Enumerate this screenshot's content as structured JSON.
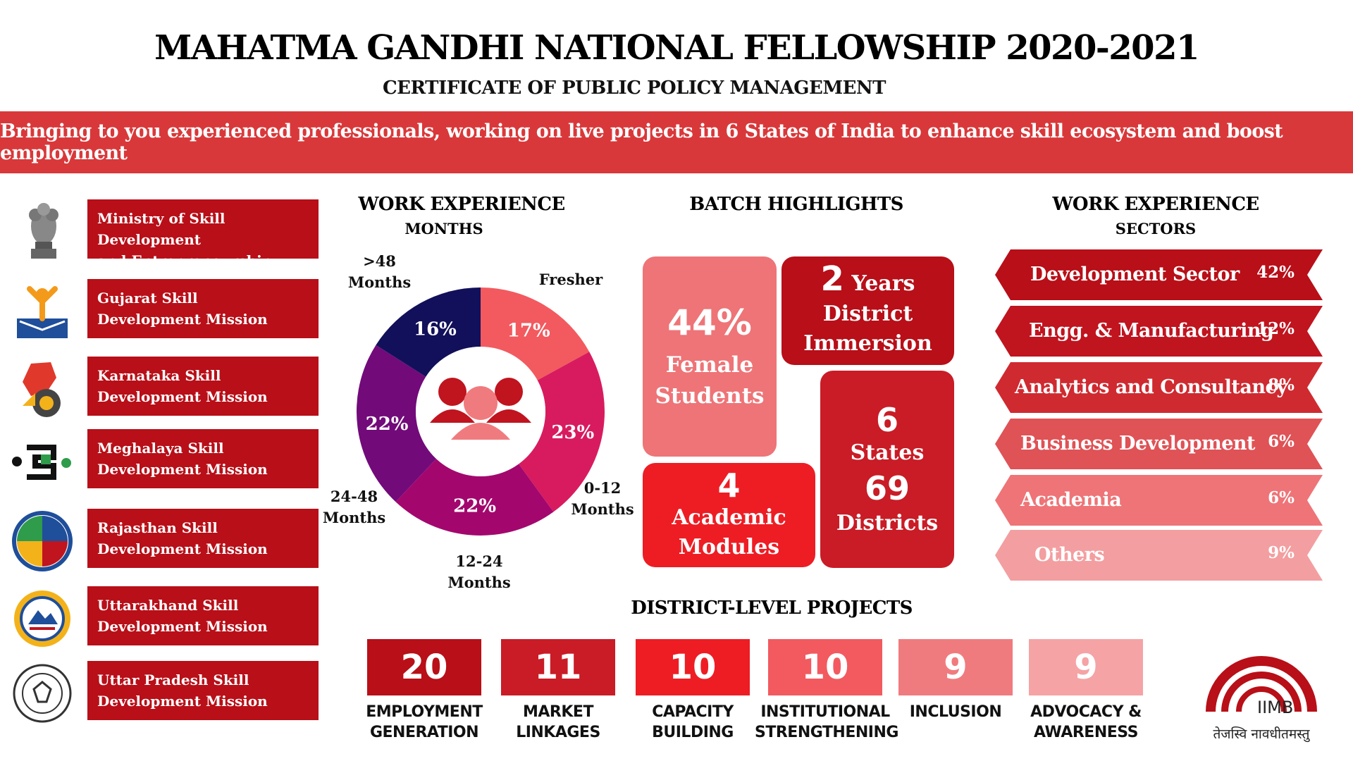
{
  "header": {
    "title": "MAHATMA GANDHI NATIONAL FELLOWSHIP 2020-2021",
    "subtitle": "CERTIFICATE OF PUBLIC POLICY MANAGEMENT",
    "banner": "Bringing to you experienced professionals, working on live projects in 6 States of India to enhance skill ecosystem and boost employment",
    "banner_color": "#d9383a"
  },
  "missions": [
    {
      "name": "Ministry of Skill Development\nand Entrepreneurship, GoI",
      "logo": "national-emblem-icon"
    },
    {
      "name": "Gujarat Skill\nDevelopment Mission",
      "logo": "gujarat-mission-logo"
    },
    {
      "name": "Karnataka Skill\nDevelopment Mission",
      "logo": "karnataka-mission-logo"
    },
    {
      "name": "Meghalaya Skill\nDevelopment Mission",
      "logo": "meghalaya-mission-logo"
    },
    {
      "name": "Rajasthan Skill\nDevelopment Mission",
      "logo": "rajasthan-mission-logo"
    },
    {
      "name": "Uttarakhand Skill\nDevelopment Mission",
      "logo": "uttarakhand-mission-logo"
    },
    {
      "name": "Uttar Pradesh Skill\nDevelopment Mission",
      "logo": "uttar-pradesh-mission-logo"
    }
  ],
  "work_experience_months": {
    "heading": "WORK EXPERIENCE",
    "subheading": "MONTHS",
    "center_icon": "people-group-icon",
    "segments": [
      {
        "label": "Fresher",
        "pct": 17,
        "display": "17%",
        "color": "#f25a5f"
      },
      {
        "label": "0-12\nMonths",
        "pct": 23,
        "display": "23%",
        "color": "#d81b5f"
      },
      {
        "label": "12-24\nMonths",
        "pct": 22,
        "display": "22%",
        "color": "#a3076e"
      },
      {
        "label": "24-48\nMonths",
        "pct": 22,
        "display": "22%",
        "color": "#720a7a"
      },
      {
        "label": ">48\nMonths",
        "pct": 16,
        "display": "16%",
        "color": "#12105a"
      }
    ]
  },
  "batch_highlights": {
    "heading": "BATCH HIGHLIGHTS",
    "female": {
      "value": "44%",
      "label": "Female\nStudents"
    },
    "immersion": {
      "value": "2",
      "unit": "Years",
      "label": "District\nImmersion"
    },
    "modules": {
      "value": "4",
      "label": "Academic\nModules"
    },
    "states": {
      "value": "6",
      "label": "States",
      "value2": "69",
      "label2": "Districts"
    }
  },
  "work_experience_sectors": {
    "heading": "WORK EXPERIENCE",
    "subheading": "SECTORS",
    "items": [
      {
        "name": "Development Sector",
        "pct": "42%",
        "color": "#b80f18"
      },
      {
        "name": "Engg. & Manufacturing",
        "pct": "12%",
        "color": "#c0141f"
      },
      {
        "name": "Analytics and Consultancy",
        "pct": "8%",
        "color": "#cf2a30"
      },
      {
        "name": "Business Development",
        "pct": "6%",
        "color": "#df5256"
      },
      {
        "name": "Academia",
        "pct": "6%",
        "color": "#ee7477"
      },
      {
        "name": "Others",
        "pct": "9%",
        "color": "#f39ea0"
      }
    ]
  },
  "district_projects": {
    "heading": "DISTRICT-LEVEL PROJECTS",
    "items": [
      {
        "value": "20",
        "label": "EMPLOYMENT\nGENERATION",
        "color": "#b80f18"
      },
      {
        "value": "11",
        "label": "MARKET\nLINKAGES",
        "color": "#c91c26"
      },
      {
        "value": "10",
        "label": "CAPACITY\nBUILDING",
        "color": "#ee1d24"
      },
      {
        "value": "10",
        "label": "INSTITUTIONAL\nSTRENGTHENING",
        "color": "#f25a5f"
      },
      {
        "value": "9",
        "label": "INCLUSION",
        "color": "#f07b7e"
      },
      {
        "value": "9",
        "label": "ADVOCACY &\nAWARENESS",
        "color": "#f5a3a5"
      }
    ]
  },
  "iimb": {
    "name": "IIMB",
    "motto": "तेजस्वि नावधीतमस्तु",
    "color": "#b80f18"
  }
}
